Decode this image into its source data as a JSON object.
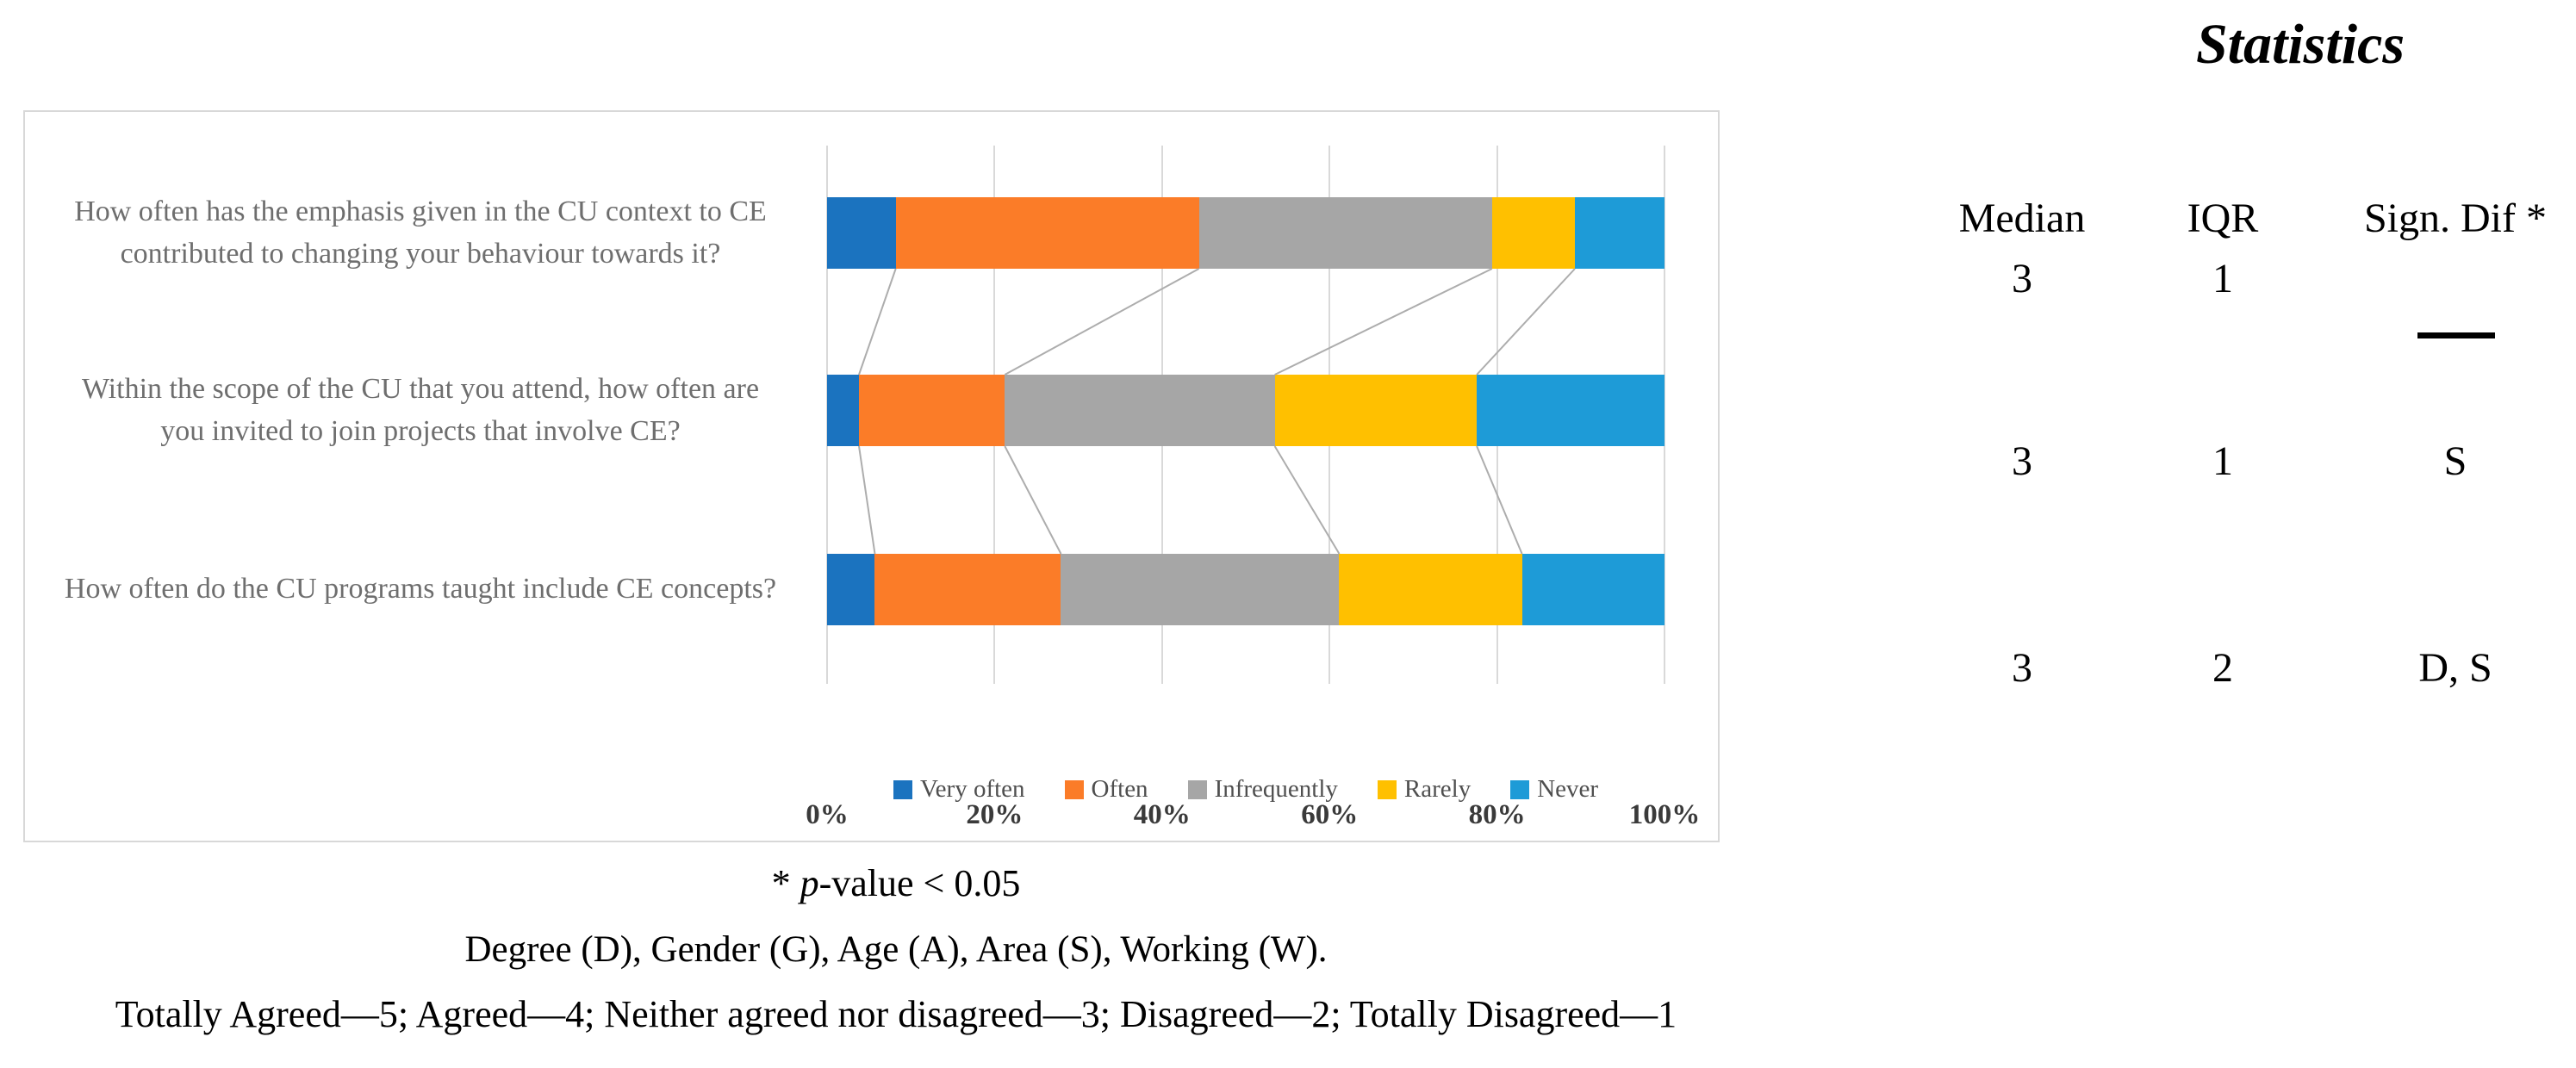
{
  "chart_data": {
    "type": "bar",
    "orientation": "horizontal",
    "stacked": true,
    "unit": "percent",
    "categories": [
      "How often has the emphasis given in the CU context to CE contributed to changing your behaviour towards it?",
      "Within the scope of the CU that you attend, how often are you invited to join projects that involve CE?",
      "How often do the CU programs taught include CE concepts?"
    ],
    "category_lines": [
      [
        "How often has the emphasis given in the CU context to CE",
        "contributed to changing your behaviour towards it?"
      ],
      [
        "Within the scope of the CU that you attend, how often are",
        "you invited to join projects that involve CE?"
      ],
      [
        "How often do the CU programs taught include CE concepts?"
      ]
    ],
    "series": [
      {
        "name": "Very often",
        "color": "#1B73BF",
        "values": [
          8.2,
          3.8,
          5.7
        ]
      },
      {
        "name": "Often",
        "color": "#FB7C28",
        "values": [
          36.2,
          17.4,
          22.2
        ]
      },
      {
        "name": "Infrequently",
        "color": "#A6A6A6",
        "values": [
          35.0,
          32.2,
          33.2
        ]
      },
      {
        "name": "Rarely",
        "color": "#FFC000",
        "values": [
          9.9,
          24.1,
          21.8
        ]
      },
      {
        "name": "Never",
        "color": "#1E9BD7",
        "values": [
          10.7,
          22.4,
          17.0
        ]
      }
    ],
    "x_tick_labels": [
      "0%",
      "20%",
      "40%",
      "60%",
      "80%",
      "100%"
    ],
    "xlim": [
      0,
      100
    ],
    "grid": true,
    "legend_position": "bottom",
    "gridline_color": "#D9D9D9",
    "connector_line_color": "#ADADAD"
  },
  "stats": {
    "title": "Statistics",
    "columns": {
      "median": "Median",
      "iqr": "IQR",
      "sign": "Sign. Dif *"
    },
    "rows": [
      {
        "median": "3",
        "iqr": "1",
        "sign": "—"
      },
      {
        "median": "3",
        "iqr": "1",
        "sign": "S"
      },
      {
        "median": "3",
        "iqr": "2",
        "sign": "D, S"
      }
    ]
  },
  "footnotes": {
    "pvalue_prefix": "* ",
    "pvalue_italic": "p",
    "pvalue_rest": "-value < 0.05",
    "groups": "Degree (D), Gender (G), Age (A), Area (S), Working (W).",
    "scale": "Totally Agreed—5; Agreed—4; Neither agreed nor disagreed—3; Disagreed—2; Totally Disagreed—1"
  }
}
